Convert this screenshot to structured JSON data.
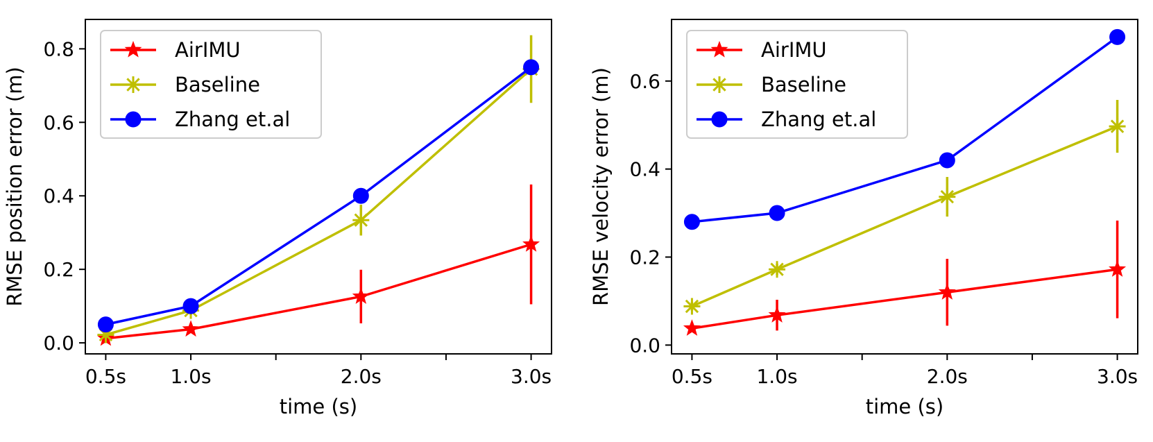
{
  "chart_data": [
    {
      "type": "line",
      "xlabel": "time (s)",
      "ylabel": "RMSE position error (m)",
      "categories": [
        "0.5s",
        "1.0s",
        "2.0s",
        "3.0s"
      ],
      "x": [
        0.5,
        1.0,
        2.0,
        3.0
      ],
      "xlim": [
        0.38,
        3.12
      ],
      "xticks_minor": [
        1.5,
        2.5
      ],
      "ylim": [
        -0.03,
        0.88
      ],
      "yticks": [
        "0.0",
        "0.2",
        "0.4",
        "0.6",
        "0.8"
      ],
      "grid": false,
      "legend_position": "top-left",
      "series": [
        {
          "name": "AirIMU",
          "color": "#ff0000",
          "marker": "star",
          "values": [
            0.012,
            0.037,
            0.126,
            0.268
          ],
          "errors": [
            0.006,
            0.01,
            0.073,
            0.163
          ]
        },
        {
          "name": "Baseline",
          "color": "#bfbf00",
          "marker": "x",
          "values": [
            0.022,
            0.088,
            0.334,
            0.745
          ],
          "errors": [
            0.01,
            0.012,
            0.042,
            0.092
          ]
        },
        {
          "name": "Zhang et.al",
          "color": "#0000ff",
          "marker": "circle",
          "values": [
            0.05,
            0.1,
            0.4,
            0.75
          ],
          "errors": [
            0,
            0,
            0,
            0
          ]
        }
      ]
    },
    {
      "type": "line",
      "xlabel": "time (s)",
      "ylabel": "RMSE velocity error (m)",
      "categories": [
        "0.5s",
        "1.0s",
        "2.0s",
        "3.0s"
      ],
      "x": [
        0.5,
        1.0,
        2.0,
        3.0
      ],
      "xlim": [
        0.38,
        3.12
      ],
      "xticks_minor": [
        1.5,
        2.5
      ],
      "ylim": [
        -0.02,
        0.74
      ],
      "yticks": [
        "0.0",
        "0.2",
        "0.4",
        "0.6"
      ],
      "grid": false,
      "legend_position": "top-left",
      "series": [
        {
          "name": "AirIMU",
          "color": "#ff0000",
          "marker": "star",
          "values": [
            0.038,
            0.068,
            0.12,
            0.172
          ],
          "errors": [
            0.006,
            0.035,
            0.076,
            0.111
          ]
        },
        {
          "name": "Baseline",
          "color": "#bfbf00",
          "marker": "x",
          "values": [
            0.088,
            0.172,
            0.337,
            0.497
          ],
          "errors": [
            0.01,
            0.013,
            0.045,
            0.06
          ]
        },
        {
          "name": "Zhang et.al",
          "color": "#0000ff",
          "marker": "circle",
          "values": [
            0.28,
            0.3,
            0.42,
            0.7
          ],
          "errors": [
            0,
            0,
            0,
            0
          ]
        }
      ]
    }
  ]
}
